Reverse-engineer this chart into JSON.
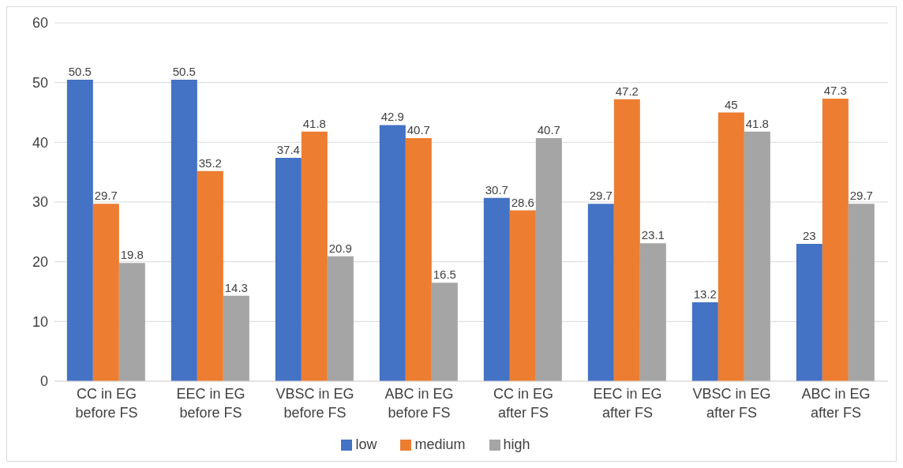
{
  "chart_data": {
    "type": "bar",
    "categories": [
      "CC in EG before FS",
      "EEC in EG before FS",
      "VBSC in EG before FS",
      "ABC in EG before FS",
      "CC in EG after FS",
      "EEC in EG after FS",
      "VBSC in EG after FS",
      "ABC in EG after FS"
    ],
    "series": [
      {
        "name": "low",
        "color": "#4472c4",
        "values": [
          50.5,
          50.5,
          37.4,
          42.9,
          30.7,
          29.7,
          13.2,
          23
        ]
      },
      {
        "name": "medium",
        "color": "#ed7d31",
        "values": [
          29.7,
          35.2,
          41.8,
          40.7,
          28.6,
          47.2,
          45,
          47.3
        ]
      },
      {
        "name": "high",
        "color": "#a5a5a5",
        "values": [
          19.8,
          14.3,
          20.9,
          16.5,
          40.7,
          23.1,
          41.8,
          29.7
        ]
      }
    ],
    "ylim": [
      0,
      60
    ],
    "yticks": [
      0,
      10,
      20,
      30,
      40,
      50,
      60
    ],
    "grid": "y",
    "legend": "bottom",
    "data_labels": true
  }
}
